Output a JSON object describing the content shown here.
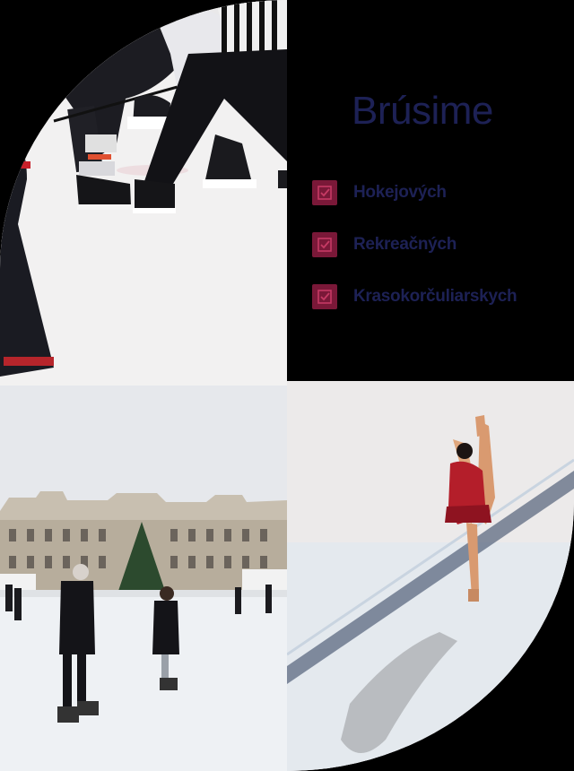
{
  "panel": {
    "title": "Brúsime",
    "items": [
      {
        "label": "Hokejových",
        "icon": "checkbox-icon"
      },
      {
        "label": "Rekreačných",
        "icon": "checkbox-icon"
      },
      {
        "label": "Krasokorčuliarskych",
        "icon": "checkbox-icon"
      }
    ]
  },
  "colors": {
    "background": "#000000",
    "title": "#1d2155",
    "accent": "#7a1838"
  }
}
